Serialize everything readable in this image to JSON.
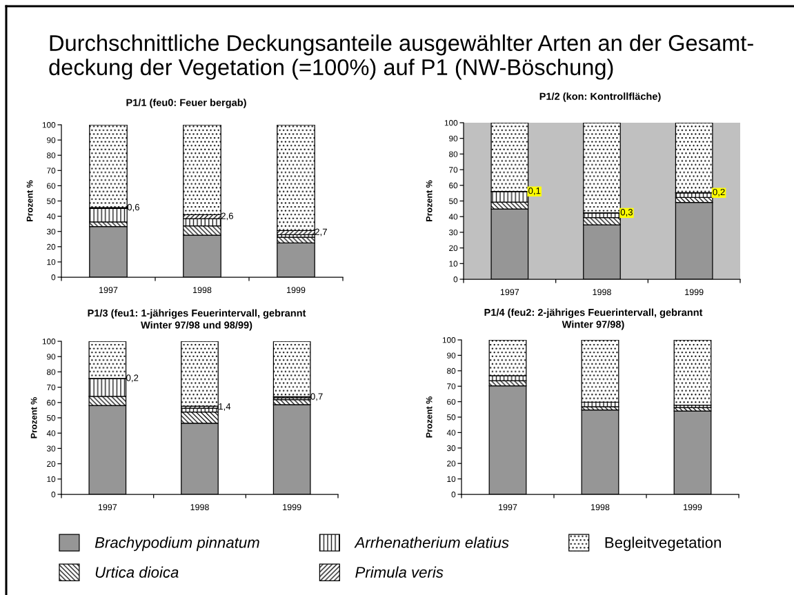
{
  "chart_data": [
    {
      "type": "bar",
      "stacked": true,
      "title": "P1/1 (feu0: Feuer bergab)",
      "ylabel": "Prozent %",
      "categories": [
        "1997",
        "1998",
        "1999"
      ],
      "ylim": [
        0,
        100
      ],
      "yticks": [
        0,
        10,
        20,
        30,
        40,
        50,
        60,
        70,
        80,
        90,
        100
      ],
      "legend": "bottom",
      "annotations": [
        "Durchschnittliche Deckungsanteile ausgewählter Arten an der Gesamt-\ndeckung der Vegetation (=100%) auf P1 (NW-Böschung)"
      ],
      "series": [
        {
          "name": "Brachypodium pinnatum",
          "color": "#969696",
          "values": [
            33.2,
            27.6,
            22.5
          ]
        },
        {
          "name": "Urtica dioica",
          "color": "#000000",
          "values": [
            3.0,
            6.0,
            3.7
          ]
        },
        {
          "name": "Arrhenatherium elatius",
          "color": "#000000",
          "values": [
            8.9,
            4.8,
            1.7
          ]
        },
        {
          "name": "Primula veris",
          "color": "#000000",
          "values": [
            0.6,
            2.6,
            2.7
          ],
          "value_labels": [
            "0,6",
            "2,6",
            "2,7"
          ]
        },
        {
          "name": "Begleitvegetation",
          "color": "#000000",
          "values": [
            54.3,
            59.0,
            69.4
          ]
        }
      ]
    },
    {
      "type": "bar",
      "stacked": true,
      "title": "P1/2 (kon: Kontrollfläche)",
      "ylabel": "Prozent %",
      "categories": [
        "1997",
        "1998",
        "1999"
      ],
      "ylim": [
        0,
        100
      ],
      "yticks": [
        0,
        10,
        20,
        30,
        40,
        50,
        60,
        70,
        80,
        90,
        100
      ],
      "series": [
        {
          "color": "#969696",
          "values": [
            44.9,
            34.7,
            49.1
          ]
        },
        {
          "color": "#000000",
          "values": [
            4.4,
            4.7,
            3.2
          ]
        },
        {
          "color": "#000000",
          "values": [
            6.7,
            2.8,
            2.8
          ]
        },
        {
          "color": "#000000",
          "values": [
            0.1,
            0.3,
            0.2
          ],
          "value_labels": [
            "0,1",
            "0,3",
            "0,2"
          ]
        },
        {
          "color": "#000000",
          "values": [
            43.9,
            57.5,
            44.7
          ]
        }
      ]
    },
    {
      "type": "bar",
      "stacked": true,
      "title": "P1/3 (feu1: 1-jähriges Feuerintervall, gebrannt\nWinter 97/98 und 98/99)",
      "ylabel": "Prozent %",
      "categories": [
        "1997",
        "1998",
        "1999"
      ],
      "ylim": [
        0,
        100
      ],
      "yticks": [
        0,
        10,
        20,
        30,
        40,
        50,
        60,
        70,
        80,
        90,
        100
      ],
      "series": [
        {
          "color": "#969696",
          "values": [
            58.1,
            46.5,
            58.6
          ]
        },
        {
          "color": "#000000",
          "values": [
            5.9,
            7.3,
            3.3
          ]
        },
        {
          "color": "#000000",
          "values": [
            11.5,
            2.4,
            1.2
          ]
        },
        {
          "color": "#000000",
          "values": [
            0.2,
            1.4,
            0.7
          ],
          "value_labels": [
            "0,2",
            "1,4",
            "0,7"
          ]
        },
        {
          "color": "#000000",
          "values": [
            24.3,
            42.4,
            36.2
          ]
        }
      ]
    },
    {
      "type": "bar",
      "stacked": true,
      "title": "P1/4 (feu2: 2-jähriges Feuerintervall, gebrannt\nWinter 97/98)",
      "ylabel": "Prozent %",
      "categories": [
        "1997",
        "1998",
        "1999"
      ],
      "ylim": [
        0,
        100
      ],
      "yticks": [
        0,
        10,
        20,
        30,
        40,
        50,
        60,
        70,
        80,
        90,
        100
      ],
      "series": [
        {
          "color": "#969696",
          "values": [
            70.3,
            54.6,
            54.0
          ]
        },
        {
          "color": "#000000",
          "values": [
            3.3,
            2.1,
            2.2
          ]
        },
        {
          "color": "#000000",
          "values": [
            3.2,
            2.9,
            1.6
          ]
        },
        {
          "color": "#000000",
          "values": [
            null,
            null,
            null
          ]
        },
        {
          "color": "#000000",
          "values": [
            23.2,
            40.4,
            42.2
          ]
        }
      ]
    }
  ]
}
